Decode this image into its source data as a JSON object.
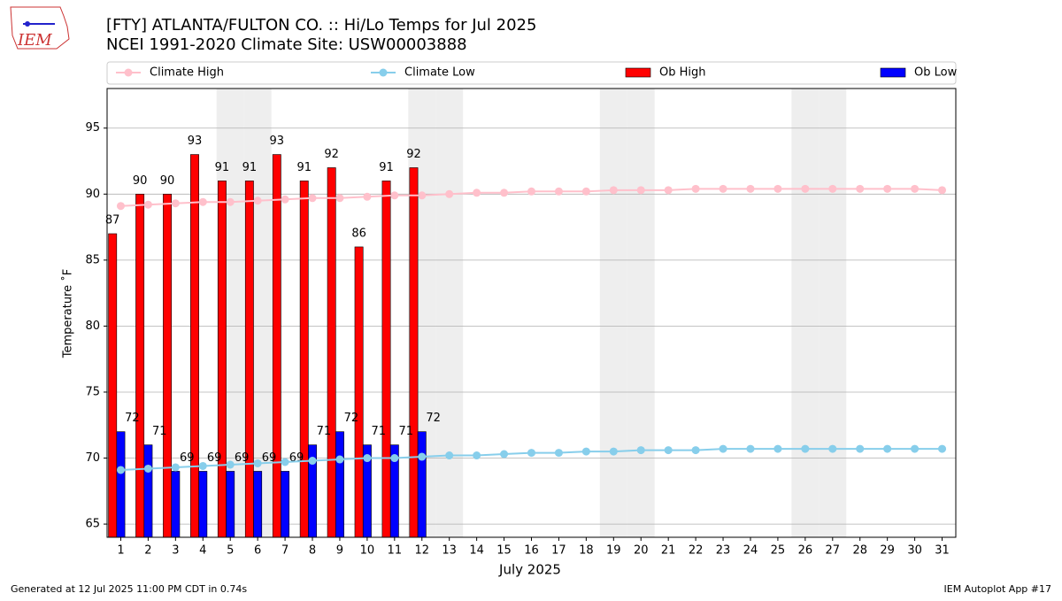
{
  "logo_text": "IEM",
  "chart_data": {
    "type": "combo",
    "title": "[FTY] ATLANTA/FULTON CO. :: Hi/Lo Temps for Jul 2025",
    "subtitle": "NCEI 1991-2020 Climate Site: USW00003888",
    "xlabel": "July 2025",
    "ylabel": "Temperature ˚F",
    "footer_left": "Generated at 12 Jul 2025 11:00 PM CDT in 0.74s",
    "footer_right": "IEM Autoplot App #17",
    "categories": [
      "1",
      "2",
      "3",
      "4",
      "5",
      "6",
      "7",
      "8",
      "9",
      "10",
      "11",
      "12",
      "13",
      "14",
      "15",
      "16",
      "17",
      "18",
      "19",
      "20",
      "21",
      "22",
      "23",
      "24",
      "25",
      "26",
      "27",
      "28",
      "29",
      "30",
      "31"
    ],
    "weekend_days": [
      5,
      6,
      12,
      13,
      19,
      20,
      26,
      27
    ],
    "ylim": [
      64,
      98
    ],
    "yticks": [
      65,
      70,
      75,
      80,
      85,
      90,
      95
    ],
    "grid": true,
    "series": [
      {
        "name": "Climate High",
        "kind": "line",
        "color": "#ffc0cb",
        "values": [
          89.1,
          89.2,
          89.3,
          89.4,
          89.4,
          89.5,
          89.6,
          89.7,
          89.7,
          89.8,
          89.9,
          89.9,
          90.0,
          90.1,
          90.1,
          90.2,
          90.2,
          90.2,
          90.3,
          90.3,
          90.3,
          90.4,
          90.4,
          90.4,
          90.4,
          90.4,
          90.4,
          90.4,
          90.4,
          90.4,
          90.3
        ]
      },
      {
        "name": "Climate Low",
        "kind": "line",
        "color": "#87ceeb",
        "values": [
          69.1,
          69.2,
          69.3,
          69.4,
          69.5,
          69.6,
          69.7,
          69.8,
          69.9,
          70.0,
          70.0,
          70.1,
          70.2,
          70.2,
          70.3,
          70.4,
          70.4,
          70.5,
          70.5,
          70.6,
          70.6,
          70.6,
          70.7,
          70.7,
          70.7,
          70.7,
          70.7,
          70.7,
          70.7,
          70.7,
          70.7
        ]
      },
      {
        "name": "Ob High",
        "kind": "bar",
        "color": "#ff0000",
        "values": [
          87,
          90,
          90,
          93,
          91,
          91,
          93,
          91,
          92,
          86,
          91,
          92,
          null,
          null,
          null,
          null,
          null,
          null,
          null,
          null,
          null,
          null,
          null,
          null,
          null,
          null,
          null,
          null,
          null,
          null,
          null
        ]
      },
      {
        "name": "Ob Low",
        "kind": "bar",
        "color": "#0000ff",
        "values": [
          72,
          71,
          69,
          69,
          69,
          69,
          69,
          71,
          72,
          71,
          71,
          72,
          null,
          null,
          null,
          null,
          null,
          null,
          null,
          null,
          null,
          null,
          null,
          null,
          null,
          null,
          null,
          null,
          null,
          null,
          null
        ]
      }
    ]
  }
}
